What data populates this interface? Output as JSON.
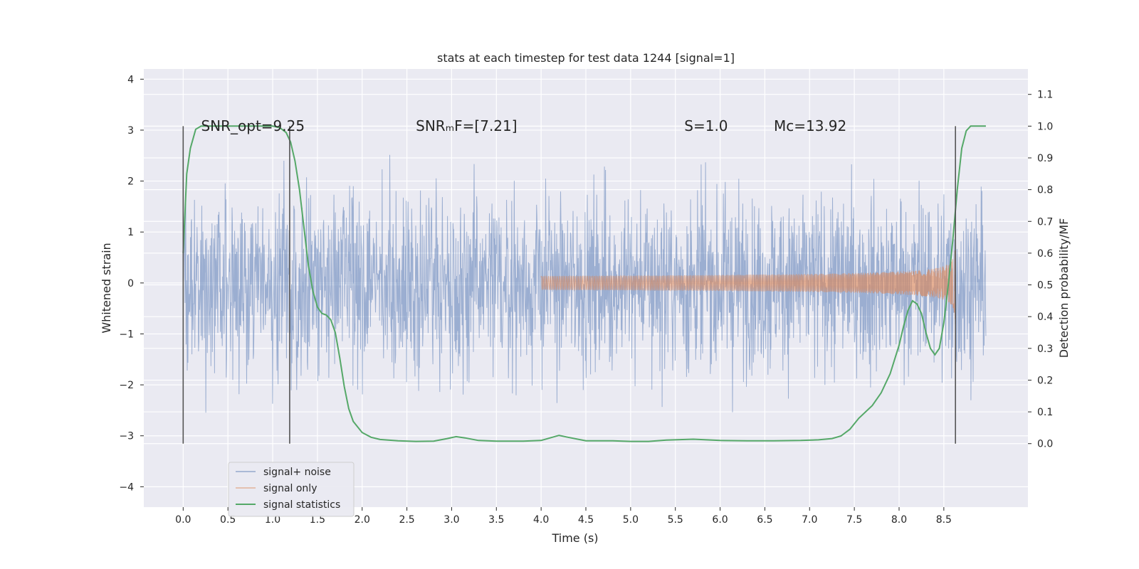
{
  "chart_data": {
    "type": "line",
    "title": "stats at each timestep for test data 1244 [signal=1]",
    "xlabel": "Time (s)",
    "ylabel_left": "Whitened strain",
    "ylabel_right": "Detection probability/MF",
    "xlim": [
      -0.44,
      9.44
    ],
    "ylim_left": [
      -4.4,
      4.2
    ],
    "ylim_right": [
      -0.2,
      1.18
    ],
    "xticks": [
      "0.0",
      "0.5",
      "1.0",
      "1.5",
      "2.0",
      "2.5",
      "3.0",
      "3.5",
      "4.0",
      "4.5",
      "5.0",
      "5.5",
      "6.0",
      "6.5",
      "7.0",
      "7.5",
      "8.0",
      "8.5"
    ],
    "yticks_left": [
      "4",
      "3",
      "2",
      "1",
      "0",
      "−1",
      "−2",
      "−3",
      "−4"
    ],
    "yticks_right": [
      "1.1",
      "1.0",
      "0.9",
      "0.8",
      "0.7",
      "0.6",
      "0.5",
      "0.4",
      "0.3",
      "0.2",
      "0.1",
      "0.0"
    ],
    "grid": true,
    "legend_position": "bottom-left",
    "annotations": [
      {
        "text": "SNR_opt=9.25",
        "x": 0.2
      },
      {
        "text": "SNRₘF=[7.21]",
        "x": 2.6
      },
      {
        "text": "S=1.0",
        "x": 5.6
      },
      {
        "text": "Mᴄ=13.92",
        "x": 6.6
      }
    ],
    "vertical_lines": [
      0.0,
      1.19,
      8.63
    ],
    "series": [
      {
        "name": "signal+ noise",
        "color": "#4c72b0",
        "axis": "left",
        "time_range": [
          0.0,
          8.97
        ],
        "sample_count": 2200,
        "envelope_std": 0.9,
        "peak_range": [
          -3.9,
          4.0
        ]
      },
      {
        "name": "signal only",
        "color": "#dd8452",
        "axis": "left",
        "chirp_start": 4.0,
        "chirp_end": 8.63,
        "peak_amplitude": 0.8
      },
      {
        "name": "signal statistics",
        "color": "#55a868",
        "axis": "right",
        "x": [
          0.0,
          0.04,
          0.08,
          0.14,
          0.2,
          0.3,
          0.5,
          0.8,
          1.0,
          1.08,
          1.15,
          1.2,
          1.25,
          1.3,
          1.35,
          1.4,
          1.45,
          1.5,
          1.55,
          1.6,
          1.65,
          1.7,
          1.75,
          1.8,
          1.85,
          1.9,
          2.0,
          2.1,
          2.2,
          2.4,
          2.6,
          2.8,
          2.95,
          3.05,
          3.15,
          3.3,
          3.5,
          3.8,
          4.0,
          4.1,
          4.2,
          4.3,
          4.5,
          4.8,
          5.0,
          5.2,
          5.4,
          5.7,
          6.0,
          6.3,
          6.6,
          6.9,
          7.1,
          7.25,
          7.35,
          7.45,
          7.55,
          7.7,
          7.8,
          7.9,
          8.0,
          8.05,
          8.1,
          8.15,
          8.2,
          8.25,
          8.3,
          8.35,
          8.4,
          8.45,
          8.5,
          8.55,
          8.6,
          8.65,
          8.7,
          8.75,
          8.8,
          8.9,
          8.97
        ],
        "y": [
          0.6,
          0.85,
          0.93,
          0.99,
          1.0,
          1.0,
          1.0,
          1.0,
          1.0,
          0.995,
          0.98,
          0.95,
          0.89,
          0.8,
          0.68,
          0.56,
          0.48,
          0.43,
          0.41,
          0.405,
          0.39,
          0.35,
          0.27,
          0.18,
          0.11,
          0.07,
          0.035,
          0.02,
          0.013,
          0.009,
          0.007,
          0.008,
          0.016,
          0.022,
          0.018,
          0.01,
          0.008,
          0.008,
          0.01,
          0.018,
          0.026,
          0.02,
          0.009,
          0.009,
          0.007,
          0.007,
          0.011,
          0.014,
          0.01,
          0.009,
          0.009,
          0.01,
          0.012,
          0.016,
          0.024,
          0.045,
          0.08,
          0.12,
          0.16,
          0.22,
          0.31,
          0.37,
          0.42,
          0.45,
          0.44,
          0.41,
          0.35,
          0.3,
          0.28,
          0.3,
          0.38,
          0.5,
          0.64,
          0.8,
          0.93,
          0.985,
          1.0,
          1.0,
          1.0
        ]
      }
    ]
  }
}
